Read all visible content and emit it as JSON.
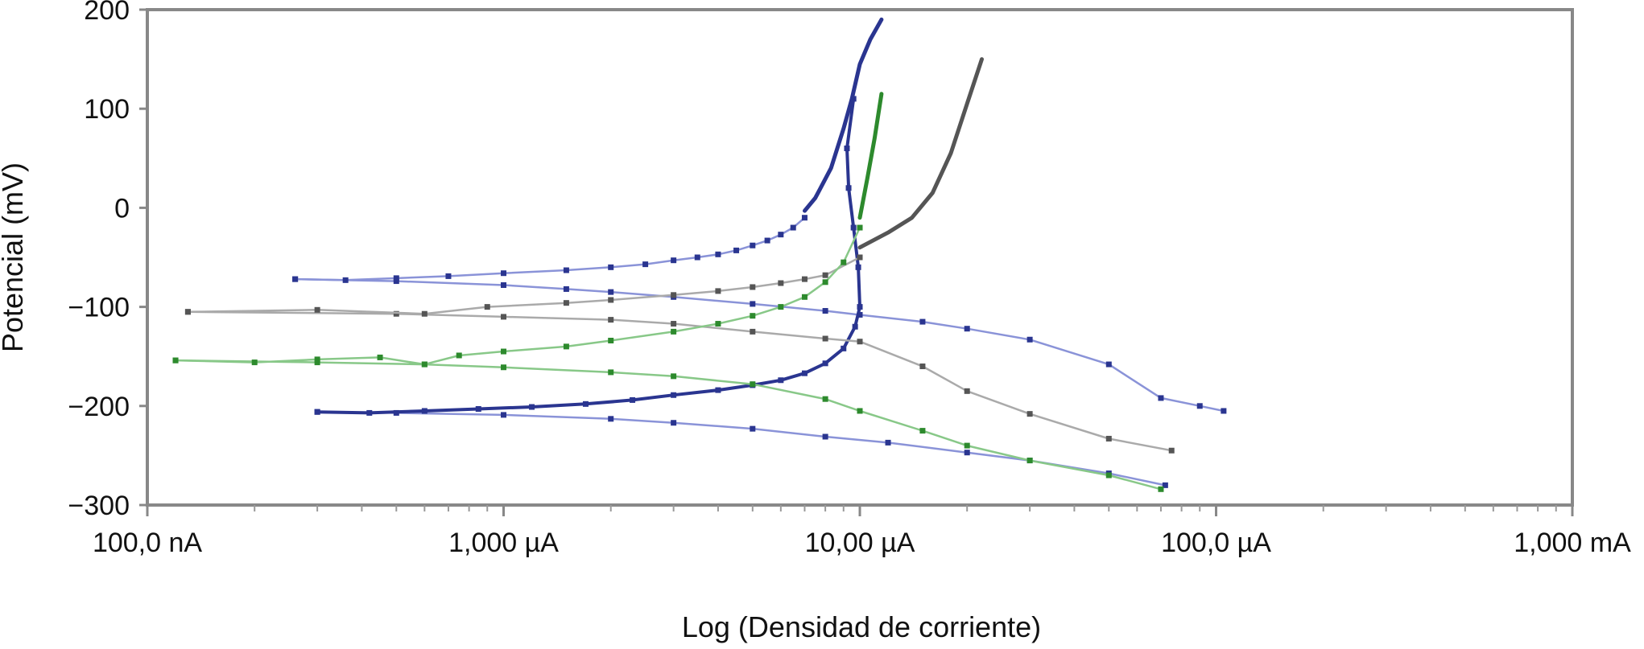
{
  "chart_data": {
    "type": "line",
    "title": "",
    "xlabel": "Log (Densidad de corriente)",
    "ylabel": "Potencial (mV)",
    "x_scale": "log",
    "x_unit": "µA",
    "xlim": [
      0.1,
      1000
    ],
    "ylim": [
      -300,
      200
    ],
    "x_ticks": [
      {
        "value": 0.1,
        "label": "100,0 nA"
      },
      {
        "value": 1,
        "label": "1,000 µA"
      },
      {
        "value": 10,
        "label": "10,00 µA"
      },
      {
        "value": 100,
        "label": "100,0 µA"
      },
      {
        "value": 1000,
        "label": "1,000 mA"
      }
    ],
    "y_ticks": [
      {
        "value": 200,
        "label": "200"
      },
      {
        "value": 100,
        "label": "100"
      },
      {
        "value": 0,
        "label": "0"
      },
      {
        "value": -100,
        "label": "−100"
      },
      {
        "value": -200,
        "label": "−200"
      },
      {
        "value": -300,
        "label": "−300"
      }
    ],
    "grid": false,
    "legend": "none",
    "series": [
      {
        "color": "#2a3590",
        "light_color": "#8a93d8",
        "cathodic": [
          [
            0.26,
            -72
          ],
          [
            0.36,
            -73
          ],
          [
            0.5,
            -71
          ],
          [
            0.7,
            -69
          ],
          [
            1.0,
            -66
          ],
          [
            1.5,
            -63
          ],
          [
            2.0,
            -60
          ],
          [
            2.5,
            -57
          ],
          [
            3.0,
            -53
          ],
          [
            3.5,
            -50
          ],
          [
            4.0,
            -47
          ],
          [
            4.5,
            -43
          ],
          [
            5.0,
            -38
          ],
          [
            5.5,
            -33
          ],
          [
            6.0,
            -27
          ],
          [
            6.5,
            -20
          ],
          [
            7.0,
            -10
          ]
        ],
        "anodic": [
          [
            7.0,
            -3
          ],
          [
            7.5,
            10
          ],
          [
            8.3,
            40
          ],
          [
            9.0,
            80
          ],
          [
            9.5,
            110
          ],
          [
            10.0,
            145
          ],
          [
            10.7,
            170
          ],
          [
            11.5,
            190
          ]
        ],
        "reverse": [
          [
            0.26,
            -72
          ],
          [
            0.5,
            -74
          ],
          [
            1.0,
            -78
          ],
          [
            1.5,
            -82
          ],
          [
            2.0,
            -85
          ],
          [
            3.0,
            -90
          ],
          [
            5.0,
            -97
          ],
          [
            8.0,
            -104
          ],
          [
            10.0,
            -108
          ],
          [
            15.0,
            -115
          ],
          [
            20.0,
            -122
          ],
          [
            30.0,
            -133
          ],
          [
            50.0,
            -158
          ],
          [
            70.0,
            -192
          ],
          [
            90.0,
            -200
          ],
          [
            105.0,
            -205
          ]
        ],
        "cathodic_low": [
          [
            0.3,
            -206
          ],
          [
            0.42,
            -207
          ],
          [
            0.6,
            -205
          ],
          [
            0.85,
            -203
          ],
          [
            1.2,
            -201
          ],
          [
            1.7,
            -198
          ],
          [
            2.3,
            -194
          ],
          [
            3.0,
            -189
          ],
          [
            4.0,
            -184
          ],
          [
            5.0,
            -179
          ],
          [
            6.0,
            -174
          ],
          [
            7.0,
            -167
          ],
          [
            8.0,
            -157
          ],
          [
            9.0,
            -142
          ],
          [
            9.7,
            -120
          ],
          [
            10.0,
            -100
          ],
          [
            9.9,
            -60
          ],
          [
            9.6,
            -20
          ],
          [
            9.3,
            20
          ],
          [
            9.2,
            60
          ],
          [
            9.6,
            110
          ]
        ],
        "reverse_low": [
          [
            0.3,
            -206
          ],
          [
            0.5,
            -207
          ],
          [
            1.0,
            -209
          ],
          [
            2.0,
            -213
          ],
          [
            3.0,
            -217
          ],
          [
            5.0,
            -223
          ],
          [
            8.0,
            -231
          ],
          [
            12.0,
            -237
          ],
          [
            20.0,
            -247
          ],
          [
            30.0,
            -255
          ],
          [
            50.0,
            -268
          ],
          [
            72.0,
            -280
          ]
        ]
      },
      {
        "color": "#555555",
        "light_color": "#aaaaaa",
        "cathodic": [
          [
            0.13,
            -105
          ],
          [
            0.3,
            -103
          ],
          [
            0.6,
            -107
          ],
          [
            0.9,
            -100
          ],
          [
            1.5,
            -96
          ],
          [
            2.0,
            -93
          ],
          [
            3.0,
            -88
          ],
          [
            4.0,
            -84
          ],
          [
            5.0,
            -80
          ],
          [
            6.0,
            -76
          ],
          [
            7.0,
            -72
          ],
          [
            8.0,
            -68
          ],
          [
            10.0,
            -50
          ]
        ],
        "anodic": [
          [
            10.0,
            -40
          ],
          [
            12.0,
            -25
          ],
          [
            14.0,
            -10
          ],
          [
            16.0,
            15
          ],
          [
            18.0,
            55
          ],
          [
            20.0,
            105
          ],
          [
            22.0,
            150
          ]
        ],
        "reverse": [
          [
            0.13,
            -105
          ],
          [
            0.5,
            -107
          ],
          [
            1.0,
            -110
          ],
          [
            2.0,
            -113
          ],
          [
            3.0,
            -117
          ],
          [
            5.0,
            -125
          ],
          [
            8.0,
            -132
          ],
          [
            10.0,
            -135
          ],
          [
            15.0,
            -160
          ],
          [
            20.0,
            -185
          ],
          [
            30.0,
            -208
          ],
          [
            50.0,
            -233
          ],
          [
            75.0,
            -245
          ]
        ]
      },
      {
        "color": "#2d8a2d",
        "light_color": "#88c888",
        "cathodic": [
          [
            0.12,
            -154
          ],
          [
            0.2,
            -156
          ],
          [
            0.3,
            -153
          ],
          [
            0.45,
            -151
          ],
          [
            0.6,
            -158
          ],
          [
            0.75,
            -149
          ],
          [
            1.0,
            -145
          ],
          [
            1.5,
            -140
          ],
          [
            2.0,
            -134
          ],
          [
            3.0,
            -125
          ],
          [
            4.0,
            -117
          ],
          [
            5.0,
            -109
          ],
          [
            6.0,
            -100
          ],
          [
            7.0,
            -90
          ],
          [
            8.0,
            -75
          ],
          [
            9.0,
            -55
          ],
          [
            10.0,
            -20
          ]
        ],
        "anodic": [
          [
            10.0,
            -10
          ],
          [
            10.5,
            30
          ],
          [
            11.0,
            70
          ],
          [
            11.5,
            115
          ]
        ],
        "reverse": [
          [
            0.12,
            -154
          ],
          [
            0.3,
            -156
          ],
          [
            0.6,
            -158
          ],
          [
            1.0,
            -161
          ],
          [
            2.0,
            -166
          ],
          [
            3.0,
            -170
          ],
          [
            5.0,
            -178
          ],
          [
            8.0,
            -193
          ],
          [
            10.0,
            -205
          ],
          [
            15.0,
            -225
          ],
          [
            20.0,
            -240
          ],
          [
            30.0,
            -255
          ],
          [
            50.0,
            -270
          ],
          [
            70.0,
            -284
          ]
        ]
      }
    ]
  }
}
